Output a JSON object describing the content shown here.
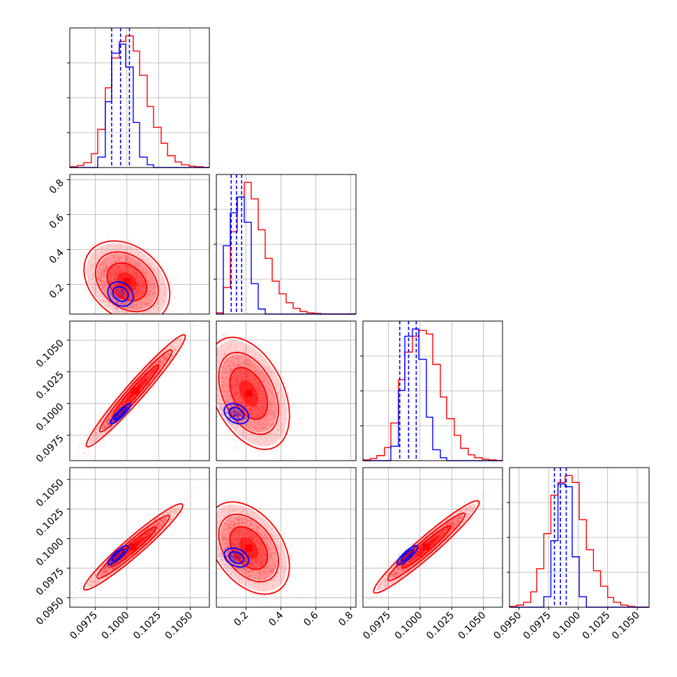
{
  "chart_data": {
    "type": "corner",
    "n_params": 4,
    "colors": {
      "series_a": "#ff0000",
      "series_b": "#0000ff",
      "grid": "#b0b0b0",
      "frame": "#000000"
    },
    "grid": true,
    "ranges": [
      [
        0.0955,
        0.1065
      ],
      [
        0.03,
        0.83
      ],
      [
        0.0955,
        0.1065
      ],
      [
        0.0942,
        0.106
      ]
    ],
    "axis_ticks": [
      {
        "values": [
          0.0975,
          0.1,
          0.1025,
          0.105
        ],
        "labels": [
          "0.0975",
          "0.1000",
          "0.1025",
          "0.1050"
        ]
      },
      {
        "values": [
          0.2,
          0.4,
          0.6,
          0.8
        ],
        "labels": [
          "0.2",
          "0.4",
          "0.6",
          "0.8"
        ]
      },
      {
        "values": [
          0.0975,
          0.1,
          0.1025,
          0.105
        ],
        "labels": [
          "0.0975",
          "0.1000",
          "0.1025",
          "0.1050"
        ]
      },
      {
        "values": [
          0.095,
          0.0975,
          0.1,
          0.1025,
          0.105
        ],
        "labels": [
          "0.0950",
          "0.0975",
          "0.1000",
          "0.1025",
          "0.1050"
        ]
      }
    ],
    "histograms": [
      {
        "param": 0,
        "bin_edges": [
          0.0955,
          0.0961,
          0.0966,
          0.0972,
          0.0977,
          0.0983,
          0.0988,
          0.0994,
          0.0999,
          0.1005,
          0.101,
          0.1016,
          0.1021,
          0.1027,
          0.1032,
          0.1038,
          0.1043,
          0.1049,
          0.1054,
          0.106,
          0.1065
        ],
        "series_a_counts": [
          1,
          3,
          7,
          20,
          55,
          115,
          158,
          182,
          190,
          168,
          133,
          88,
          58,
          35,
          17,
          8,
          4,
          2,
          1,
          0
        ],
        "series_b_counts": [
          0,
          0,
          0,
          0,
          15,
          95,
          165,
          178,
          145,
          65,
          15,
          4,
          0,
          0,
          0,
          0,
          0,
          0,
          0,
          0
        ],
        "quantile_lines": [
          0.0988,
          0.0995,
          0.1002
        ]
      },
      {
        "param": 1,
        "bin_edges": [
          0.03,
          0.07,
          0.11,
          0.15,
          0.19,
          0.23,
          0.27,
          0.31,
          0.35,
          0.39,
          0.43,
          0.47,
          0.51,
          0.55,
          0.59,
          0.63,
          0.67,
          0.71,
          0.75,
          0.79,
          0.83
        ],
        "series_a_counts": [
          2,
          42,
          130,
          185,
          208,
          182,
          133,
          88,
          52,
          32,
          18,
          9,
          4,
          2,
          1,
          0,
          0,
          0,
          0,
          0
        ],
        "series_b_counts": [
          0,
          108,
          160,
          185,
          145,
          48,
          8,
          0,
          0,
          0,
          0,
          0,
          0,
          0,
          0,
          0,
          0,
          0,
          0,
          0
        ],
        "quantile_lines": [
          0.115,
          0.145,
          0.175
        ]
      },
      {
        "param": 2,
        "bin_edges": [
          0.0955,
          0.0961,
          0.0966,
          0.0972,
          0.0977,
          0.0983,
          0.0988,
          0.0994,
          0.0999,
          0.1005,
          0.101,
          0.1016,
          0.1021,
          0.1027,
          0.1032,
          0.1038,
          0.1043,
          0.1049,
          0.1054,
          0.106,
          0.1065
        ],
        "series_a_counts": [
          1,
          3,
          7,
          18,
          52,
          112,
          150,
          172,
          180,
          175,
          133,
          88,
          58,
          35,
          17,
          8,
          4,
          2,
          1,
          0
        ],
        "series_b_counts": [
          0,
          0,
          0,
          0,
          20,
          97,
          172,
          182,
          140,
          60,
          15,
          4,
          0,
          0,
          0,
          0,
          0,
          0,
          0,
          0
        ],
        "quantile_lines": [
          0.0984,
          0.0991,
          0.0997
        ]
      },
      {
        "param": 3,
        "bin_edges": [
          0.0942,
          0.0948,
          0.0954,
          0.096,
          0.0965,
          0.0971,
          0.0977,
          0.0983,
          0.0989,
          0.0995,
          0.1001,
          0.1007,
          0.1013,
          0.1019,
          0.1025,
          0.103,
          0.1036,
          0.1042,
          0.1048,
          0.1054,
          0.106
        ],
        "series_a_counts": [
          1,
          3,
          7,
          22,
          55,
          105,
          160,
          178,
          188,
          178,
          125,
          82,
          52,
          30,
          14,
          7,
          3,
          1,
          0,
          0
        ],
        "series_b_counts": [
          0,
          0,
          0,
          0,
          0,
          15,
          95,
          176,
          172,
          72,
          15,
          0,
          0,
          0,
          0,
          0,
          0,
          0,
          0,
          0
        ],
        "quantile_lines": [
          0.098,
          0.0985,
          0.099
        ]
      }
    ],
    "pairs": [
      {
        "x_param": 0,
        "y_param": 1,
        "series_a": {
          "mean": [
            0.1,
            0.215
          ],
          "sd": [
            0.0013,
            0.09
          ],
          "corr": -0.3,
          "n": 2000
        },
        "series_b": {
          "mean": [
            0.0995,
            0.145
          ],
          "sd": [
            0.0005,
            0.035
          ],
          "corr": -0.2,
          "n": 600
        }
      },
      {
        "x_param": 0,
        "y_param": 2,
        "series_a": {
          "mean": [
            0.1007,
            0.101
          ],
          "sd": [
            0.0015,
            0.0017
          ],
          "corr": 0.97,
          "n": 2000
        },
        "series_b": {
          "mean": [
            0.0995,
            0.0992
          ],
          "sd": [
            0.0004,
            0.0004
          ],
          "corr": 0.9,
          "n": 600
        }
      },
      {
        "x_param": 1,
        "y_param": 2,
        "series_a": {
          "mean": [
            0.215,
            0.1008
          ],
          "sd": [
            0.09,
            0.0017
          ],
          "corr": -0.4,
          "n": 2000
        },
        "series_b": {
          "mean": [
            0.145,
            0.0992
          ],
          "sd": [
            0.035,
            0.0004
          ],
          "corr": -0.3,
          "n": 600
        }
      },
      {
        "x_param": 0,
        "y_param": 3,
        "series_a": {
          "mean": [
            0.1005,
            0.0993
          ],
          "sd": [
            0.0015,
            0.0014
          ],
          "corr": 0.96,
          "n": 2000
        },
        "series_b": {
          "mean": [
            0.0993,
            0.0986
          ],
          "sd": [
            0.0004,
            0.0004
          ],
          "corr": 0.85,
          "n": 600
        }
      },
      {
        "x_param": 1,
        "y_param": 3,
        "series_a": {
          "mean": [
            0.215,
            0.0992
          ],
          "sd": [
            0.09,
            0.0015
          ],
          "corr": -0.4,
          "n": 2000
        },
        "series_b": {
          "mean": [
            0.145,
            0.0984
          ],
          "sd": [
            0.035,
            0.0004
          ],
          "corr": -0.3,
          "n": 600
        }
      },
      {
        "x_param": 2,
        "y_param": 3,
        "series_a": {
          "mean": [
            0.1005,
            0.0993
          ],
          "sd": [
            0.0016,
            0.0015
          ],
          "corr": 0.96,
          "n": 2000
        },
        "series_b": {
          "mean": [
            0.099,
            0.0986
          ],
          "sd": [
            0.0004,
            0.0004
          ],
          "corr": 0.85,
          "n": 600
        }
      }
    ]
  }
}
